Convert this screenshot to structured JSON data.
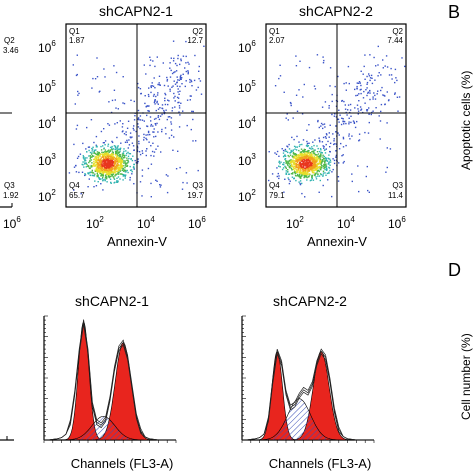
{
  "chart_data": [
    {
      "type": "scatter",
      "title": "",
      "xlabel": "",
      "ylabel": "",
      "quadrants": {
        "q2": "3.46",
        "q3": "1.92"
      },
      "ticks_x": [
        {
          "base": "10",
          "exp": "6"
        }
      ]
    },
    {
      "type": "scatter",
      "title": "shCAPN2-1",
      "xlabel": "Annexin-V",
      "ylabel": "",
      "xscale": "log",
      "yscale": "log",
      "quadrants": {
        "q1_label": "Q1",
        "q1": "1.87",
        "q2_label": "Q2",
        "q2": "12.7",
        "q3_label": "Q3",
        "q3": "19.7",
        "q4_label": "Q4",
        "q4": "65.7"
      },
      "ticks_x": [
        {
          "base": "10",
          "exp": "2"
        },
        {
          "base": "10",
          "exp": "4"
        },
        {
          "base": "10",
          "exp": "6"
        }
      ],
      "ticks_y": [
        {
          "base": "10",
          "exp": "6"
        },
        {
          "base": "10",
          "exp": "5"
        },
        {
          "base": "10",
          "exp": "4"
        },
        {
          "base": "10",
          "exp": "3"
        },
        {
          "base": "10",
          "exp": "2"
        }
      ],
      "gate": {
        "x": 3500,
        "y": 2500
      }
    },
    {
      "type": "scatter",
      "title": "shCAPN2-2",
      "xlabel": "Annexin-V",
      "ylabel": "",
      "xscale": "log",
      "yscale": "log",
      "quadrants": {
        "q1_label": "Q1",
        "q1": "2.07",
        "q2_label": "Q2",
        "q2": "7.44",
        "q3_label": "Q3",
        "q3": "11.4",
        "q4_label": "Q4",
        "q4": "79.1"
      },
      "ticks_x": [
        {
          "base": "10",
          "exp": "2"
        },
        {
          "base": "10",
          "exp": "4"
        },
        {
          "base": "10",
          "exp": "6"
        }
      ],
      "ticks_y": [
        {
          "base": "10",
          "exp": "6"
        },
        {
          "base": "10",
          "exp": "5"
        },
        {
          "base": "10",
          "exp": "4"
        },
        {
          "base": "10",
          "exp": "3"
        },
        {
          "base": "10",
          "exp": "2"
        }
      ],
      "gate": {
        "x": 3500,
        "y": 2500
      }
    },
    {
      "type": "bar",
      "panel_letter": "B",
      "ylabel": "Apoptotic cells (%)"
    },
    {
      "type": "area",
      "title": "shCAPN2-1",
      "xlabel": "Channels (FL3-A)",
      "ylabel": "",
      "series": [
        {
          "name": "",
          "x": [
            0,
            5,
            10,
            15,
            20,
            25,
            30,
            35,
            40,
            45,
            50,
            55,
            60,
            65,
            70,
            75,
            80,
            85,
            90,
            95,
            100,
            105,
            110,
            115,
            120,
            125,
            130,
            135,
            140,
            145,
            150
          ],
          "values": [
            0,
            0,
            1,
            2,
            4,
            10,
            30,
            80,
            150,
            200,
            150,
            60,
            30,
            25,
            35,
            70,
            120,
            155,
            165,
            140,
            90,
            40,
            15,
            5,
            2,
            1,
            0,
            0,
            0,
            0,
            0
          ]
        }
      ]
    },
    {
      "type": "area",
      "title": "shCAPN2-2",
      "xlabel": "Channels (FL3-A)",
      "ylabel": "",
      "series": [
        {
          "name": "",
          "x": [
            0,
            5,
            10,
            15,
            20,
            25,
            30,
            35,
            40,
            45,
            50,
            55,
            60,
            65,
            70,
            75,
            80,
            85,
            90,
            95,
            100,
            105,
            110,
            115,
            120,
            125,
            130,
            135,
            140,
            145,
            150
          ],
          "values": [
            0,
            0,
            1,
            2,
            4,
            10,
            35,
            100,
            150,
            130,
            80,
            55,
            60,
            75,
            85,
            80,
            95,
            130,
            150,
            140,
            100,
            50,
            18,
            6,
            2,
            1,
            0,
            0,
            0,
            0,
            0
          ]
        }
      ]
    },
    {
      "type": "bar",
      "panel_letter": "D",
      "ylabel": "Cell number (%)"
    }
  ]
}
